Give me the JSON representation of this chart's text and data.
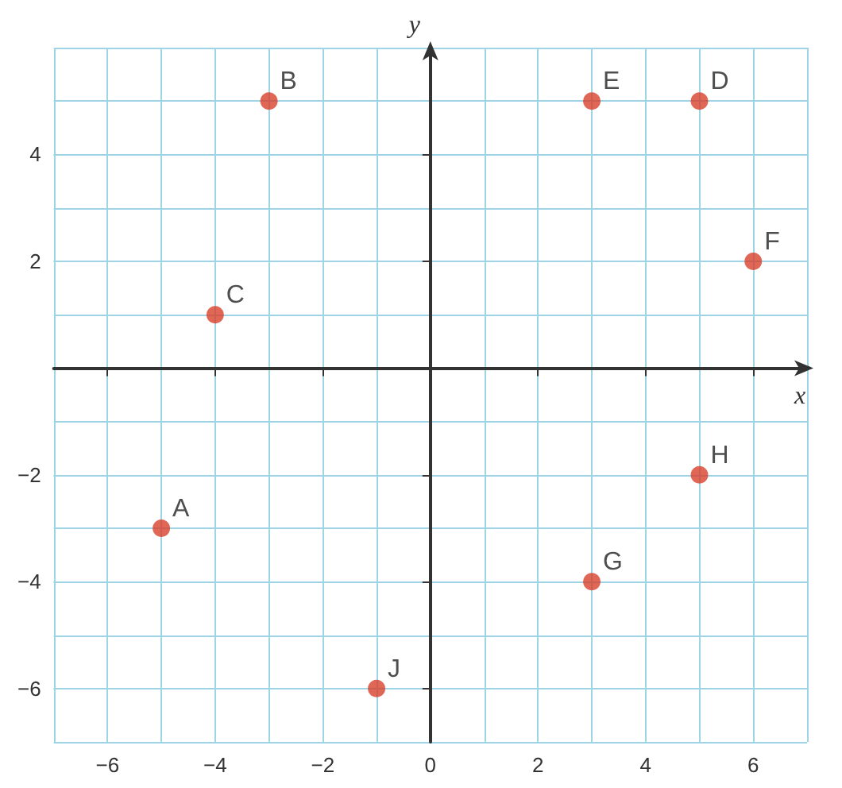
{
  "chart_data": {
    "type": "scatter",
    "xlabel": "x",
    "ylabel": "y",
    "x": [
      -5,
      -3,
      -4,
      5,
      3,
      6,
      3,
      5,
      -1
    ],
    "values": [
      -3,
      5,
      1,
      5,
      5,
      2,
      -4,
      -2,
      -6
    ],
    "color": "#d8402a",
    "marker": "circle",
    "xlim": [
      -7,
      7
    ],
    "ylim": [
      -7,
      6
    ],
    "xticks": [
      -6,
      -4,
      -2,
      0,
      2,
      4,
      6
    ],
    "yticks": [
      -6,
      -4,
      -2,
      2,
      4
    ],
    "grid": true,
    "annotations": [
      {
        "text": "A",
        "x": -5,
        "y": -3
      },
      {
        "text": "B",
        "x": -3,
        "y": 5
      },
      {
        "text": "C",
        "x": -4,
        "y": 1
      },
      {
        "text": "D",
        "x": 5,
        "y": 5
      },
      {
        "text": "E",
        "x": 3,
        "y": 5
      },
      {
        "text": "F",
        "x": 6,
        "y": 2
      },
      {
        "text": "G",
        "x": 3,
        "y": -4
      },
      {
        "text": "H",
        "x": 5,
        "y": -2
      },
      {
        "text": "J",
        "x": -1,
        "y": -6
      }
    ]
  }
}
